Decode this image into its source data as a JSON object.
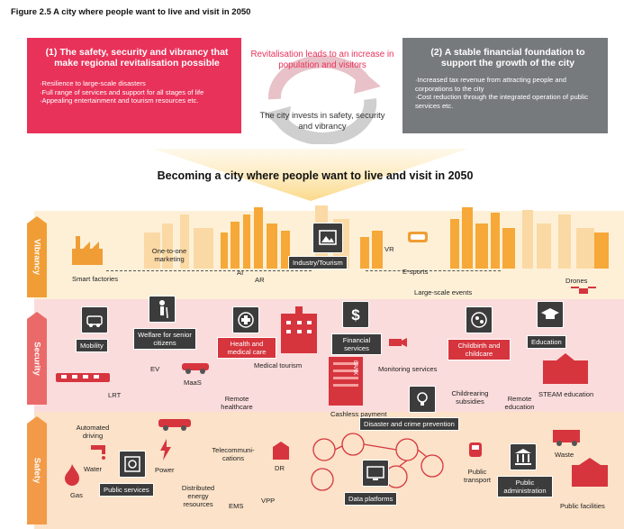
{
  "figure_title": "Figure 2.5 A city where people want to live and visit in 2050",
  "box_left": {
    "title": "(1) The safety, security and vibrancy that make regional revitalisation possible",
    "items": [
      "·Resilience to large-scale disasters",
      "·Full range of services and support for all stages of life",
      "·Appealing entertainment and tourism resources etc."
    ]
  },
  "cycle": {
    "top_text": "Revitalisation leads to an increase in population and visitors",
    "bottom_text": "The city invests in safety, security and vibrancy"
  },
  "box_right": {
    "title": "(2) A stable financial foundation to support the growth of the city",
    "items": [
      "·Increased tax revenue from attracting people and corporations to the city",
      "·Cost reduction through the integrated operation of public services etc."
    ]
  },
  "main_heading": "Becoming a city where people want to live and visit in 2050",
  "bands": {
    "vibrancy": "Vibrancy",
    "security": "Security",
    "safety": "Safety"
  },
  "vibrancy_items": {
    "smart_factories": "Smart factories",
    "one_to_one": "One-to-one marketing",
    "ai": "AI",
    "ar": "AR",
    "industry_tourism": "Industry/Tourism",
    "vr": "VR",
    "esports": "E-sports",
    "large_scale": "Large-scale events",
    "drones": "Drones"
  },
  "security_items": {
    "mobility": "Mobility",
    "welfare": "Welfare for senior citizens",
    "health": "Health and medical care",
    "financial": "Financial services",
    "childbirth": "Childbirth and childcare",
    "education": "Education",
    "ev": "EV",
    "maas": "MaaS",
    "medical_tourism": "Medical tourism",
    "monitoring": "Monitoring services",
    "lrt": "LRT",
    "remote_healthcare": "Remote healthcare",
    "cashless": "Cashless payment",
    "childrearing": "Childrearing subsidies",
    "remote_education": "Remote education",
    "steam": "STEAM education",
    "bank": "BANK"
  },
  "safety_items": {
    "disaster": "Disaster and crime prevention",
    "automated": "Automated driving",
    "telecom": "Telecommuni-cations",
    "waste": "Waste",
    "water": "Water",
    "power": "Power",
    "dr": "DR",
    "gas": "Gas",
    "public_services": "Public services",
    "distributed": "Distributed energy resources",
    "ems": "EMS",
    "vpp": "VPP",
    "data_platforms": "Data platforms",
    "public_transport": "Public transport",
    "public_admin": "Public administration",
    "public_facilities": "Public facilities"
  },
  "colors": {
    "red_box": "#e8325a",
    "grey_box": "#777a7d",
    "vibrancy": "#f19d35",
    "security": "#ea6a6a",
    "safety": "#f39a48",
    "skyline": "#f6a838"
  }
}
